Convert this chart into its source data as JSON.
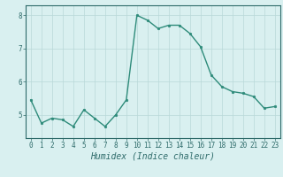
{
  "x": [
    0,
    1,
    2,
    3,
    4,
    5,
    6,
    7,
    8,
    9,
    10,
    11,
    12,
    13,
    14,
    15,
    16,
    17,
    18,
    19,
    20,
    21,
    22,
    23
  ],
  "y": [
    5.45,
    4.75,
    4.9,
    4.85,
    4.65,
    5.15,
    4.9,
    4.65,
    5.0,
    5.45,
    8.0,
    7.85,
    7.6,
    7.7,
    7.7,
    7.45,
    7.05,
    6.2,
    5.85,
    5.7,
    5.65,
    5.55,
    5.2,
    5.25
  ],
  "line_color": "#2e8b7a",
  "marker": "o",
  "marker_size": 1.8,
  "linewidth": 1.0,
  "xlabel": "Humidex (Indice chaleur)",
  "xlabel_fontsize": 7,
  "ylabel": "",
  "title": "",
  "xlim": [
    -0.5,
    23.5
  ],
  "ylim": [
    4.3,
    8.3
  ],
  "yticks": [
    5,
    6,
    7,
    8
  ],
  "xticks": [
    0,
    1,
    2,
    3,
    4,
    5,
    6,
    7,
    8,
    9,
    10,
    11,
    12,
    13,
    14,
    15,
    16,
    17,
    18,
    19,
    20,
    21,
    22,
    23
  ],
  "tick_fontsize": 5.5,
  "bg_color": "#d9f0f0",
  "grid_color": "#b8d8d8",
  "grid_linewidth": 0.5,
  "spine_color": "#2e6b6a",
  "axis_bg": "#e8f5f5"
}
